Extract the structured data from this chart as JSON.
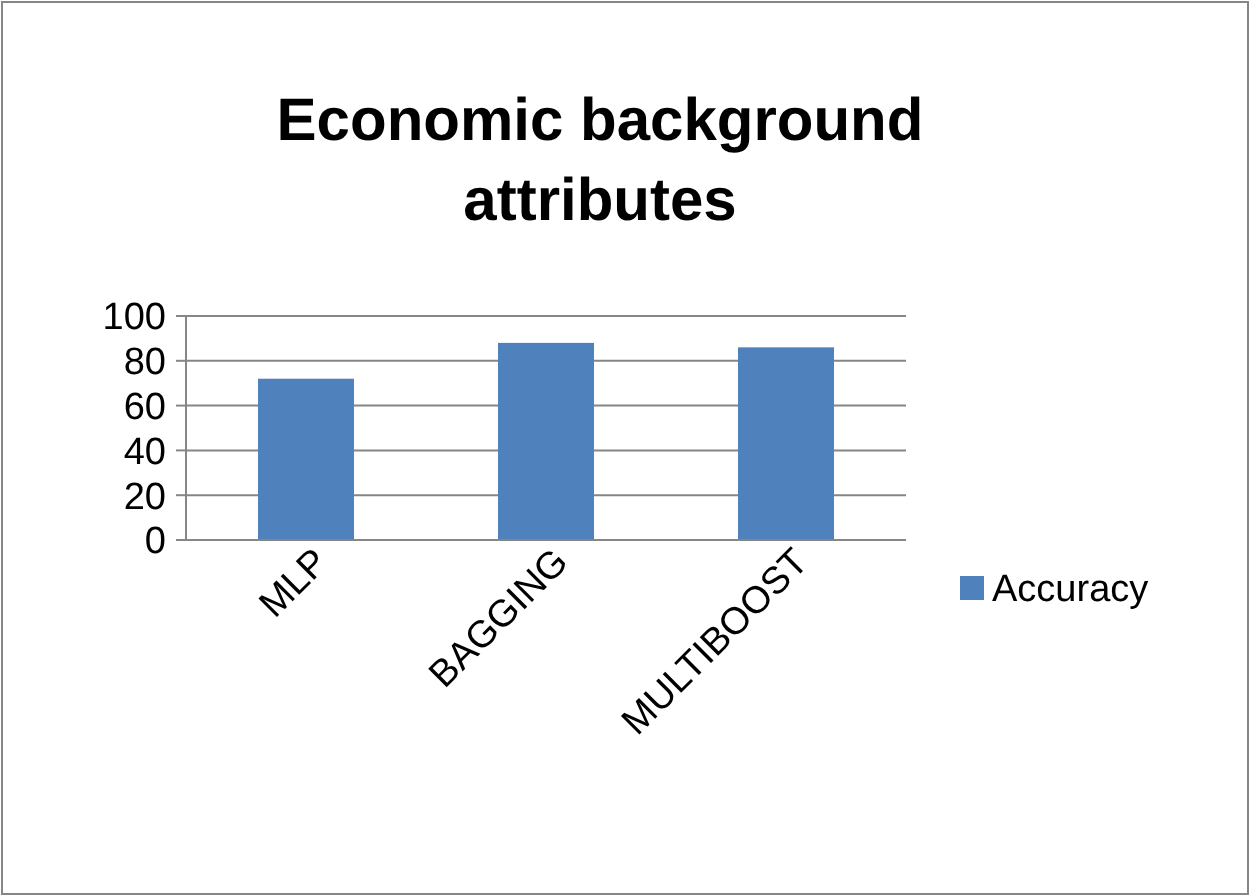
{
  "chart_data": {
    "type": "bar",
    "title": "Economic background attributes",
    "categories": [
      "MLP",
      "BAGGING",
      "MULTIBOOST"
    ],
    "series": [
      {
        "name": "Accuracy",
        "color": "#4f81bd",
        "values": [
          72,
          88,
          86
        ]
      }
    ],
    "ylim": [
      0,
      100
    ],
    "yticks": [
      0,
      20,
      40,
      60,
      80,
      100
    ],
    "grid": "y",
    "legend": "right"
  }
}
